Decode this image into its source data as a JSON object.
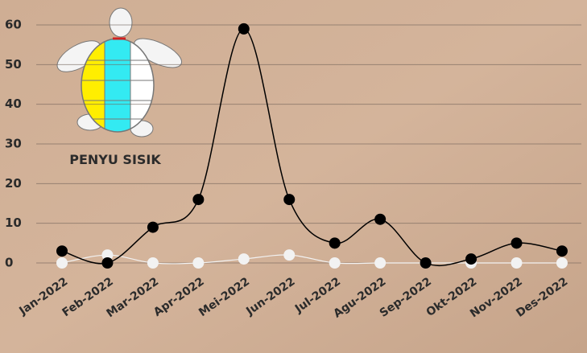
{
  "chart_data": {
    "type": "line",
    "annotation": "PENYU SISIK",
    "categories": [
      "Jan-2022",
      "Feb-2022",
      "Mar-2022",
      "Apr-2022",
      "Mei-2022",
      "Jun-2022",
      "Jul-2022",
      "Agu-2022",
      "Sep-2022",
      "Okt-2022",
      "Nov-2022",
      "Des-2022"
    ],
    "series": [
      {
        "color": "#000000",
        "values": [
          3,
          0,
          9,
          16,
          59,
          16,
          5,
          11,
          0,
          1,
          5,
          3
        ]
      },
      {
        "color": "#f2f2f2",
        "values": [
          0,
          2,
          0,
          0,
          1,
          2,
          0,
          0,
          0,
          0,
          0,
          0
        ]
      }
    ],
    "ylim": [
      0,
      60
    ],
    "yticks": [
      0,
      10,
      20,
      30,
      40,
      50,
      60
    ],
    "grid": true
  }
}
